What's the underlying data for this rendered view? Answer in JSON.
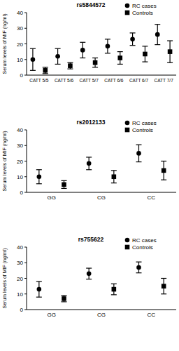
{
  "chart_data": [
    {
      "type": "dot",
      "title": "rs5844572",
      "y_label": "Serum levels of MIF (ng/ml)",
      "categories": [
        "CATT 5/5",
        "CATT 5/6",
        "CATT 5/7",
        "CATT 6/6",
        "CATT 6/7",
        "CATT 7/7"
      ],
      "series": [
        {
          "name": "RC cases",
          "color": "#000000",
          "marker": "circle",
          "values": [
            10,
            12,
            16,
            18.5,
            23,
            26
          ],
          "errors": [
            7,
            5,
            5,
            4.5,
            4,
            6.5
          ]
        },
        {
          "name": "Controls",
          "color": "#000000",
          "marker": "square",
          "values": [
            3,
            6,
            8,
            11,
            13.5,
            15
          ],
          "errors": [
            2,
            2,
            3,
            4,
            5,
            7
          ]
        }
      ],
      "ylim": [
        0,
        40
      ],
      "yticks": [
        0,
        10,
        20,
        30,
        40
      ],
      "legend": "top-right"
    },
    {
      "type": "dot",
      "title": "rs2012133",
      "y_label": "Serum levels of MIF (ng/ml)",
      "categories": [
        "GG",
        "CG",
        "CC"
      ],
      "series": [
        {
          "name": "RC cases",
          "color": "#000000",
          "marker": "circle",
          "values": [
            10,
            18.5,
            25
          ],
          "errors": [
            4.5,
            4,
            5.5
          ]
        },
        {
          "name": "Controls",
          "color": "#000000",
          "marker": "square",
          "values": [
            5,
            10,
            14
          ],
          "errors": [
            2.5,
            4,
            6
          ]
        }
      ],
      "ylim": [
        0,
        40
      ],
      "yticks": [
        0,
        10,
        20,
        30,
        40
      ],
      "legend": "top-right"
    },
    {
      "type": "dot",
      "title": "rs755622",
      "y_label": "Serum levels of MIF (ng/ml)",
      "categories": [
        "GG",
        "CG",
        "CC"
      ],
      "series": [
        {
          "name": "RC cases",
          "color": "#000000",
          "marker": "circle",
          "values": [
            13,
            23,
            27
          ],
          "errors": [
            5,
            3.5,
            3.5
          ]
        },
        {
          "name": "Controls",
          "color": "#000000",
          "marker": "square",
          "values": [
            7,
            13,
            15
          ],
          "errors": [
            2,
            3.5,
            5
          ]
        }
      ],
      "ylim": [
        0,
        40
      ],
      "yticks": [
        0,
        10,
        20,
        30,
        40
      ],
      "legend": "top-right"
    }
  ]
}
